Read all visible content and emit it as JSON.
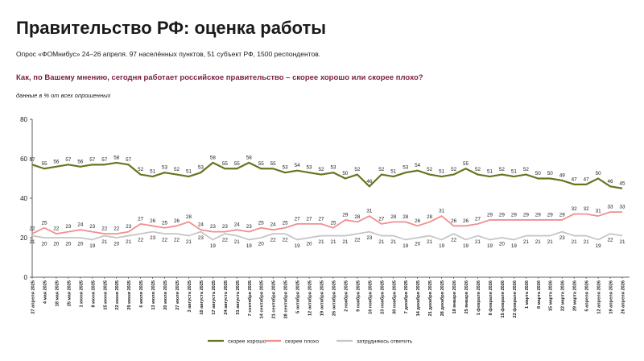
{
  "header": {
    "title": "Правительство РФ: оценка работы",
    "subtitle": "Опрос «ФОМнибус» 24–26 апреля. 97 населённых пунктов, 51 субъект РФ, 1500 респондентов.",
    "question": "Как, по Вашему мнению, сегодня работает российское правительство – скорее хорошо или скорее плохо?",
    "note": "данные в % от всех опрошенных"
  },
  "chart_data": {
    "type": "line",
    "ylim": [
      0,
      80
    ],
    "yticks": [
      0,
      20,
      40,
      60,
      80
    ],
    "grid": false,
    "legend_position": "bottom",
    "categories": [
      "27 апреля 2025",
      "4 мая 2025",
      "18 мая 2025",
      "25 мая 2025",
      "1 июня 2025",
      "8 июня 2025",
      "15 июня 2025",
      "22 июня 2025",
      "29 июня 2025",
      "6 июля 2025",
      "13 июля 2025",
      "20 июля 2025",
      "27 июля 2025",
      "3 августа 2025",
      "10 августа 2025",
      "17 августа 2025",
      "24 августа 2025",
      "31 августа 2025",
      "7 сентября 2025",
      "14 сентября 2025",
      "21 сентября 2025",
      "28 сентября 2025",
      "5 октября 2025",
      "12 октября 2025",
      "19 октября 2025",
      "26 октября 2025",
      "2 ноября 2025",
      "9 ноября 2025",
      "16 ноября 2025",
      "23 ноября 2025",
      "30 ноября 2025",
      "7 декабря 2025",
      "14 декабря 2025",
      "21 декабря 2025",
      "28 декабря 2025",
      "18 января 2026",
      "25 января 2026",
      "1 февраля 2026",
      "8 февраля 2026",
      "15 февраля 2026",
      "22 февраля 2026",
      "1 марта 2026",
      "8 марта 2026",
      "15 марта 2026",
      "22 марта 2026",
      "29 марта 2026",
      "5 апреля 2026",
      "12 апреля 2026",
      "19 апреля 2026",
      "26 апреля 2026"
    ],
    "series": [
      {
        "name": "скорее хорошо",
        "color": "#6b7320",
        "values": [
          57,
          55,
          56,
          57,
          56,
          57,
          57,
          58,
          57,
          52,
          51,
          53,
          52,
          51,
          53,
          58,
          55,
          55,
          58,
          55,
          55,
          53,
          54,
          53,
          52,
          53,
          50,
          52,
          46,
          52,
          51,
          53,
          54,
          52,
          51,
          52,
          55,
          52,
          51,
          52,
          51,
          52,
          50,
          50,
          49,
          47,
          47,
          50,
          46,
          45
        ]
      },
      {
        "name": "скорее плохо",
        "color": "#f08f90",
        "values": [
          22,
          25,
          22,
          23,
          24,
          23,
          22,
          22,
          23,
          27,
          26,
          25,
          26,
          28,
          24,
          23,
          23,
          24,
          23,
          25,
          24,
          25,
          27,
          27,
          27,
          25,
          29,
          28,
          31,
          27,
          28,
          28,
          26,
          28,
          31,
          26,
          26,
          27,
          29,
          29,
          29,
          29,
          29,
          29,
          29,
          32,
          32,
          31,
          33,
          33
        ]
      },
      {
        "name": "затрудняюсь ответить",
        "color": "#c6c6c6",
        "values": [
          21,
          20,
          20,
          20,
          20,
          19,
          21,
          20,
          21,
          22,
          23,
          22,
          22,
          21,
          23,
          19,
          22,
          21,
          19,
          20,
          22,
          22,
          19,
          20,
          21,
          21,
          21,
          22,
          23,
          21,
          21,
          19,
          20,
          21,
          19,
          22,
          19,
          21,
          19,
          20,
          19,
          21,
          21,
          21,
          23,
          21,
          21,
          19,
          22,
          21
        ]
      }
    ]
  }
}
